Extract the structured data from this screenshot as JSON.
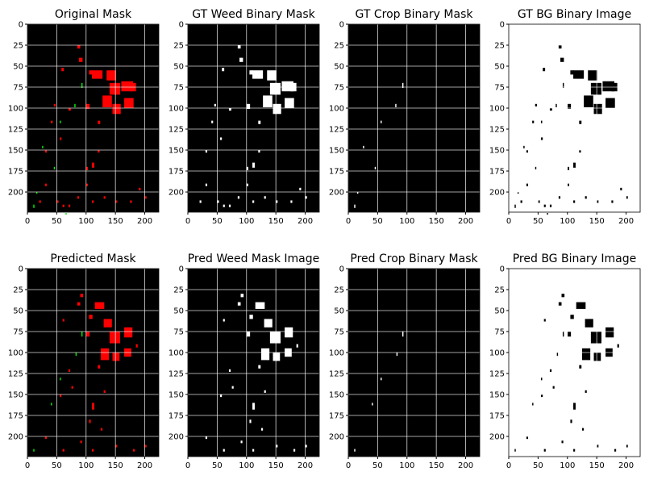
{
  "figure": {
    "background": "#ffffff",
    "mask_colors": {
      "weed": "#ff0000",
      "crop": "#00ee00",
      "background": "#000000"
    },
    "binary_colors": {
      "on": "#ffffff",
      "off": "#000000"
    }
  },
  "chart_data": [
    {
      "type": "heatmap",
      "title": "Original Mask",
      "render": "mask",
      "source": "gt",
      "xlim": [
        0,
        224
      ],
      "ylim": [
        224,
        0
      ],
      "xticks": [
        0,
        50,
        100,
        150,
        200
      ],
      "yticks": [
        0,
        25,
        50,
        75,
        100,
        125,
        150,
        175,
        200
      ],
      "grid": true
    },
    {
      "type": "heatmap",
      "title": "GT Weed Binary Mask",
      "render": "weed",
      "source": "gt",
      "xlim": [
        0,
        224
      ],
      "ylim": [
        224,
        0
      ],
      "xticks": [
        0,
        50,
        100,
        150,
        200
      ],
      "yticks": [
        0,
        25,
        50,
        75,
        100,
        125,
        150,
        175,
        200
      ],
      "grid": true
    },
    {
      "type": "heatmap",
      "title": "GT Crop Binary Mask",
      "render": "crop",
      "source": "gt",
      "xlim": [
        0,
        224
      ],
      "ylim": [
        224,
        0
      ],
      "xticks": [
        0,
        50,
        100,
        150,
        200
      ],
      "yticks": [
        0,
        25,
        50,
        75,
        100,
        125,
        150,
        175,
        200
      ],
      "grid": true
    },
    {
      "type": "heatmap",
      "title": "GT BG Binary Image",
      "render": "bg",
      "source": "gt",
      "xlim": [
        0,
        224
      ],
      "ylim": [
        224,
        0
      ],
      "xticks": [
        0,
        50,
        100,
        150,
        200
      ],
      "yticks": [
        0,
        25,
        50,
        75,
        100,
        125,
        150,
        175,
        200
      ],
      "grid": true
    },
    {
      "type": "heatmap",
      "title": "Predicted Mask",
      "render": "mask",
      "source": "pred",
      "xlim": [
        0,
        224
      ],
      "ylim": [
        224,
        0
      ],
      "xticks": [
        0,
        50,
        100,
        150,
        200
      ],
      "yticks": [
        0,
        25,
        50,
        75,
        100,
        125,
        150,
        175,
        200
      ],
      "grid": true
    },
    {
      "type": "heatmap",
      "title": "Pred Weed Mask Image",
      "render": "weed",
      "source": "pred",
      "xlim": [
        0,
        224
      ],
      "ylim": [
        224,
        0
      ],
      "xticks": [
        0,
        50,
        100,
        150,
        200
      ],
      "yticks": [
        0,
        25,
        50,
        75,
        100,
        125,
        150,
        175,
        200
      ],
      "grid": true
    },
    {
      "type": "heatmap",
      "title": "Pred Crop Binary Mask",
      "render": "crop",
      "source": "pred",
      "xlim": [
        0,
        224
      ],
      "ylim": [
        224,
        0
      ],
      "xticks": [
        0,
        50,
        100,
        150,
        200
      ],
      "yticks": [
        0,
        25,
        50,
        75,
        100,
        125,
        150,
        175,
        200
      ],
      "grid": true
    },
    {
      "type": "heatmap",
      "title": "Pred BG Binary Image",
      "render": "bg",
      "source": "pred",
      "xlim": [
        0,
        224
      ],
      "ylim": [
        224,
        0
      ],
      "xticks": [
        0,
        50,
        100,
        150,
        200
      ],
      "yticks": [
        0,
        25,
        50,
        75,
        100,
        125,
        150,
        175,
        200
      ],
      "grid": true
    }
  ],
  "regions": {
    "gt": {
      "weed": [
        [
          110,
          55,
          18,
          10
        ],
        [
          135,
          55,
          16,
          12
        ],
        [
          140,
          70,
          18,
          14
        ],
        [
          160,
          68,
          20,
          12
        ],
        [
          128,
          85,
          16,
          14
        ],
        [
          145,
          95,
          14,
          12
        ],
        [
          165,
          88,
          16,
          12
        ],
        [
          175,
          70,
          10,
          10
        ],
        [
          105,
          55,
          6,
          5
        ],
        [
          100,
          95,
          6,
          6
        ],
        [
          85,
          25,
          5,
          4
        ],
        [
          88,
          40,
          6,
          5
        ],
        [
          58,
          52,
          4,
          4
        ],
        [
          70,
          100,
          4,
          3
        ],
        [
          55,
          135,
          3,
          3
        ],
        [
          30,
          150,
          3,
          3
        ],
        [
          110,
          165,
          4,
          6
        ],
        [
          100,
          190,
          3,
          3
        ],
        [
          85,
          205,
          3,
          3
        ],
        [
          20,
          210,
          3,
          3
        ],
        [
          50,
          210,
          3,
          3
        ],
        [
          110,
          210,
          3,
          3
        ],
        [
          130,
          205,
          3,
          3
        ],
        [
          175,
          210,
          3,
          3
        ],
        [
          200,
          205,
          3,
          3
        ],
        [
          40,
          115,
          3,
          3
        ],
        [
          120,
          150,
          3,
          3
        ],
        [
          100,
          170,
          3,
          4
        ],
        [
          30,
          190,
          3,
          3
        ],
        [
          70,
          215,
          3,
          3
        ],
        [
          150,
          210,
          3,
          3
        ],
        [
          190,
          195,
          3,
          3
        ],
        [
          60,
          215,
          3,
          3
        ],
        [
          45,
          95,
          3,
          3
        ],
        [
          120,
          115,
          4,
          4
        ]
      ],
      "crop": [
        [
          92,
          70,
          2,
          6
        ],
        [
          80,
          95,
          2,
          4
        ],
        [
          55,
          115,
          2,
          3
        ],
        [
          25,
          145,
          2,
          3
        ],
        [
          10,
          215,
          2,
          4
        ],
        [
          45,
          170,
          2,
          3
        ],
        [
          65,
          225,
          2,
          2
        ],
        [
          15,
          200,
          2,
          2
        ]
      ]
    },
    "pred": {
      "weed": [
        [
          115,
          40,
          16,
          8
        ],
        [
          130,
          60,
          14,
          10
        ],
        [
          140,
          75,
          18,
          14
        ],
        [
          165,
          70,
          14,
          12
        ],
        [
          125,
          95,
          14,
          14
        ],
        [
          145,
          100,
          12,
          10
        ],
        [
          165,
          95,
          12,
          10
        ],
        [
          105,
          55,
          6,
          5
        ],
        [
          100,
          75,
          6,
          6
        ],
        [
          90,
          30,
          5,
          4
        ],
        [
          85,
          40,
          5,
          4
        ],
        [
          60,
          60,
          3,
          3
        ],
        [
          120,
          115,
          4,
          4
        ],
        [
          110,
          160,
          4,
          8
        ],
        [
          105,
          180,
          3,
          4
        ],
        [
          90,
          205,
          3,
          3
        ],
        [
          30,
          200,
          3,
          3
        ],
        [
          60,
          215,
          3,
          3
        ],
        [
          110,
          215,
          3,
          3
        ],
        [
          150,
          210,
          3,
          3
        ],
        [
          180,
          215,
          3,
          3
        ],
        [
          200,
          210,
          3,
          3
        ],
        [
          75,
          140,
          3,
          3
        ],
        [
          55,
          150,
          3,
          3
        ],
        [
          125,
          190,
          3,
          3
        ],
        [
          185,
          90,
          3,
          4
        ],
        [
          130,
          145,
          3,
          3
        ],
        [
          70,
          120,
          3,
          3
        ]
      ],
      "crop": [
        [
          92,
          75,
          2,
          6
        ],
        [
          82,
          100,
          2,
          4
        ],
        [
          55,
          130,
          2,
          3
        ],
        [
          40,
          160,
          2,
          3
        ],
        [
          10,
          215,
          2,
          3
        ]
      ]
    }
  }
}
